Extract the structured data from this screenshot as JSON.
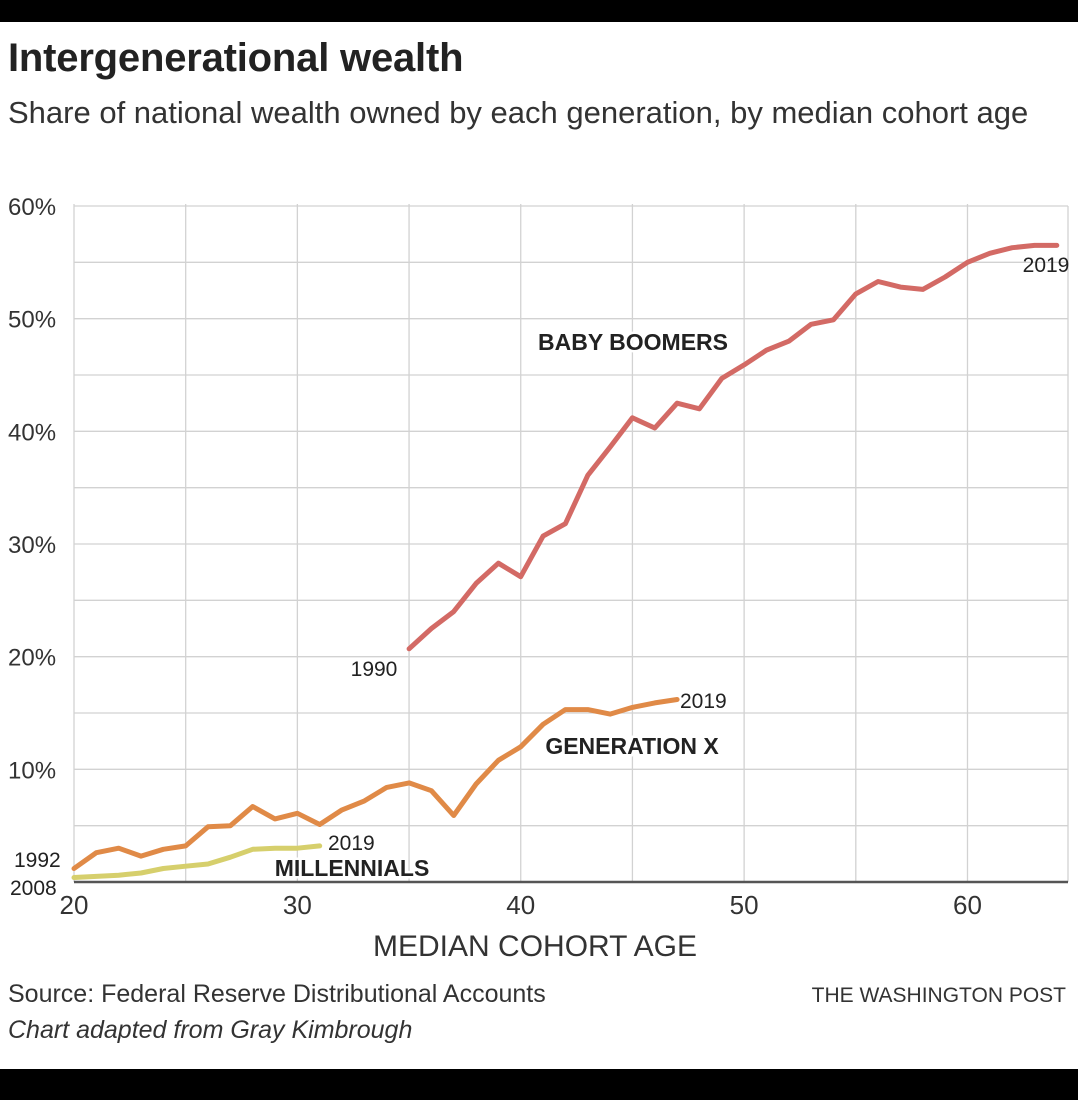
{
  "chart_data": {
    "type": "line",
    "title": "Intergenerational wealth",
    "subtitle": "Share of national wealth owned by each generation, by median cohort age",
    "xlabel": "MEDIAN COHORT AGE",
    "ylabel": "",
    "xlim": [
      20,
      64.5
    ],
    "ylim": [
      0,
      60
    ],
    "x_ticks": [
      {
        "value": 20,
        "label": "20"
      },
      {
        "value": 30,
        "label": "30"
      },
      {
        "value": 40,
        "label": "40"
      },
      {
        "value": 50,
        "label": "50"
      },
      {
        "value": 60,
        "label": "60"
      }
    ],
    "y_ticks": [
      {
        "value": 10,
        "label": "10%"
      },
      {
        "value": 20,
        "label": "20%"
      },
      {
        "value": 30,
        "label": "30%"
      },
      {
        "value": 40,
        "label": "40%"
      },
      {
        "value": 50,
        "label": "50%"
      },
      {
        "value": 60,
        "label": "60%"
      }
    ],
    "grid": true,
    "legend": "none",
    "series": [
      {
        "name": "BABY BOOMERS",
        "color": "#d36a65",
        "start_label": "1990",
        "end_label": "2019",
        "x": [
          35,
          36,
          37,
          38,
          39,
          40,
          41,
          42,
          43,
          44,
          45,
          46,
          47,
          48,
          49,
          50,
          51,
          52,
          53,
          54,
          55,
          56,
          57,
          58,
          59,
          60,
          61,
          62,
          63,
          64
        ],
        "y": [
          20.7,
          22.5,
          24.0,
          26.5,
          28.3,
          27.1,
          30.7,
          31.8,
          36.1,
          38.6,
          41.2,
          40.3,
          42.5,
          42.0,
          44.7,
          45.9,
          47.2,
          48.0,
          49.5,
          49.9,
          52.2,
          53.3,
          52.8,
          52.6,
          53.7,
          55.0,
          55.8,
          56.3,
          56.5,
          56.5
        ]
      },
      {
        "name": "GENERATION X",
        "color": "#e08a47",
        "start_label": "1992",
        "end_label": "2019",
        "x": [
          20,
          21,
          22,
          23,
          24,
          25,
          26,
          27,
          28,
          29,
          30,
          31,
          32,
          33,
          34,
          35,
          36,
          37,
          38,
          39,
          40,
          41,
          42,
          43,
          44,
          45,
          46,
          47
        ],
        "y": [
          1.2,
          2.6,
          3.0,
          2.3,
          2.9,
          3.2,
          4.9,
          5.0,
          6.7,
          5.6,
          6.1,
          5.1,
          6.4,
          7.2,
          8.4,
          8.8,
          8.1,
          5.9,
          8.7,
          10.8,
          12.0,
          14.0,
          15.3,
          15.3,
          14.9,
          15.5,
          15.9,
          16.2
        ]
      },
      {
        "name": "MILLENNIALS",
        "color": "#d6cf6c",
        "start_label": "2008",
        "end_label": "2019",
        "x": [
          20,
          21,
          22,
          23,
          24,
          25,
          26,
          27,
          28,
          29,
          30,
          31
        ],
        "y": [
          0.4,
          0.5,
          0.6,
          0.8,
          1.2,
          1.4,
          1.6,
          2.2,
          2.9,
          3.0,
          3.0,
          3.2
        ]
      }
    ]
  },
  "footer": {
    "source": "Source: Federal Reserve Distributional Accounts",
    "credit": "Chart adapted from Gray Kimbrough",
    "brand": "THE WASHINGTON POST"
  }
}
